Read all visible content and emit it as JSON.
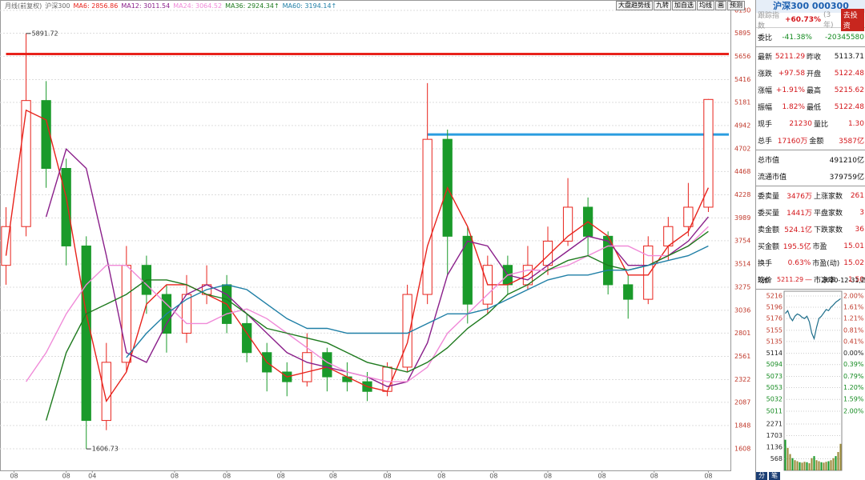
{
  "chart_data": {
    "type": "candlestick",
    "period_label": "月线(前复权)",
    "symbol_label": "沪深300",
    "ylim": [
      1385,
      6237
    ],
    "yticks": [
      6130,
      5895,
      5656,
      5416,
      5181,
      4942,
      4702,
      4468,
      4228,
      3989,
      3754,
      3514,
      3275,
      3036,
      2801,
      2561,
      2322,
      2087,
      1848,
      1608
    ],
    "xlim": [
      -0.3,
      36.1
    ],
    "xticks": [
      {
        "value": 0.4,
        "label": "08"
      },
      {
        "value": 3,
        "label": "08"
      },
      {
        "value": 4.3,
        "label": "04"
      },
      {
        "value": 8.4,
        "label": "08"
      },
      {
        "value": 11,
        "label": "08"
      },
      {
        "value": 13.7,
        "label": "08"
      },
      {
        "value": 16.3,
        "label": "08"
      },
      {
        "value": 19,
        "label": "08"
      },
      {
        "value": 21.7,
        "label": "08"
      },
      {
        "value": 24.3,
        "label": "08"
      },
      {
        "value": 27,
        "label": "08"
      },
      {
        "value": 29.7,
        "label": "08"
      },
      {
        "value": 32.3,
        "label": "08"
      },
      {
        "value": 35,
        "label": "08"
      }
    ],
    "up_color": "#e8231c",
    "down_color": "#1a9a2a",
    "candles": [
      {
        "o": 3500,
        "h": 4100,
        "l": 3300,
        "c": 3900
      },
      {
        "o": 3900,
        "h": 5891.72,
        "l": 3800,
        "c": 5200
      },
      {
        "o": 5200,
        "h": 5400,
        "l": 4300,
        "c": 4500
      },
      {
        "o": 4500,
        "h": 4600,
        "l": 3500,
        "c": 3700
      },
      {
        "o": 3700,
        "h": 3800,
        "l": 1606.73,
        "c": 1900
      },
      {
        "o": 1900,
        "h": 2700,
        "l": 1800,
        "c": 2500
      },
      {
        "o": 2500,
        "h": 3700,
        "l": 2400,
        "c": 3500
      },
      {
        "o": 3500,
        "h": 3600,
        "l": 3000,
        "c": 3200
      },
      {
        "o": 3200,
        "h": 3300,
        "l": 2600,
        "c": 2800
      },
      {
        "o": 2800,
        "h": 3400,
        "l": 2700,
        "c": 3200
      },
      {
        "o": 3200,
        "h": 3500,
        "l": 3100,
        "c": 3300
      },
      {
        "o": 3300,
        "h": 3400,
        "l": 2800,
        "c": 2900
      },
      {
        "o": 2900,
        "h": 3000,
        "l": 2500,
        "c": 2600
      },
      {
        "o": 2600,
        "h": 2700,
        "l": 2200,
        "c": 2400
      },
      {
        "o": 2400,
        "h": 2500,
        "l": 2150,
        "c": 2300
      },
      {
        "o": 2300,
        "h": 2800,
        "l": 2250,
        "c": 2600
      },
      {
        "o": 2600,
        "h": 2650,
        "l": 2200,
        "c": 2350
      },
      {
        "o": 2350,
        "h": 2500,
        "l": 2200,
        "c": 2300
      },
      {
        "o": 2300,
        "h": 2400,
        "l": 2100,
        "c": 2200
      },
      {
        "o": 2200,
        "h": 2500,
        "l": 2150,
        "c": 2450
      },
      {
        "o": 2450,
        "h": 3300,
        "l": 2400,
        "c": 3200
      },
      {
        "o": 3200,
        "h": 5380,
        "l": 3100,
        "c": 4800
      },
      {
        "o": 4800,
        "h": 4900,
        "l": 3400,
        "c": 3800
      },
      {
        "o": 3800,
        "h": 3900,
        "l": 2900,
        "c": 3100
      },
      {
        "o": 3100,
        "h": 3600,
        "l": 3000,
        "c": 3500
      },
      {
        "o": 3500,
        "h": 3600,
        "l": 3200,
        "c": 3300
      },
      {
        "o": 3300,
        "h": 3700,
        "l": 3250,
        "c": 3500
      },
      {
        "o": 3500,
        "h": 3900,
        "l": 3400,
        "c": 3750
      },
      {
        "o": 3750,
        "h": 4400,
        "l": 3700,
        "c": 4100
      },
      {
        "o": 4100,
        "h": 4200,
        "l": 3600,
        "c": 3800
      },
      {
        "o": 3800,
        "h": 3850,
        "l": 3200,
        "c": 3300
      },
      {
        "o": 3300,
        "h": 3400,
        "l": 2950,
        "c": 3150
      },
      {
        "o": 3150,
        "h": 3800,
        "l": 3100,
        "c": 3700
      },
      {
        "o": 3700,
        "h": 4000,
        "l": 3550,
        "c": 3900
      },
      {
        "o": 3900,
        "h": 4350,
        "l": 3800,
        "c": 4100
      },
      {
        "o": 4100,
        "h": 5215.62,
        "l": 4050,
        "c": 5211.29
      }
    ],
    "series": [
      {
        "name": "MA6",
        "legend_label": "MA6: 2856.86",
        "color": "#e8231c",
        "values": [
          3600,
          5100,
          5000,
          4200,
          3000,
          2100,
          2400,
          3100,
          3300,
          3300,
          3200,
          3100,
          2800,
          2500,
          2350,
          2400,
          2450,
          2350,
          2250,
          2200,
          2700,
          3700,
          4300,
          3900,
          3300,
          3300,
          3400,
          3600,
          3800,
          3950,
          3800,
          3400,
          3400,
          3700,
          3850,
          4300
        ]
      },
      {
        "name": "MA12",
        "legend_label": "MA12: 3011.54",
        "color": "#8a1f8a",
        "values": [
          null,
          null,
          4000,
          4700,
          4500,
          3600,
          2600,
          2500,
          2900,
          3200,
          3300,
          3200,
          3000,
          2800,
          2600,
          2500,
          2450,
          2400,
          2350,
          2250,
          2300,
          2700,
          3400,
          3750,
          3700,
          3400,
          3350,
          3500,
          3650,
          3800,
          3750,
          3500,
          3500,
          3600,
          3750,
          4000
        ]
      },
      {
        "name": "MA24",
        "legend_label": "MA24: 3064.52",
        "color": "#f08ad8",
        "values": [
          null,
          2300,
          2600,
          3000,
          3300,
          3500,
          3500,
          3300,
          3100,
          2900,
          2900,
          3000,
          3050,
          2950,
          2800,
          2650,
          2500,
          2400,
          2350,
          2300,
          2300,
          2450,
          2800,
          3000,
          3200,
          3400,
          3450,
          3450,
          3500,
          3600,
          3700,
          3700,
          3600,
          3600,
          3700,
          3900
        ]
      },
      {
        "name": "MA36",
        "legend_label": "MA36: 2924.34↑",
        "color": "#1e7a1e",
        "values": [
          null,
          null,
          1900,
          2600,
          3000,
          3100,
          3200,
          3350,
          3350,
          3300,
          3200,
          3150,
          3000,
          2850,
          2800,
          2750,
          2700,
          2600,
          2500,
          2450,
          2400,
          2500,
          2650,
          2850,
          3000,
          3200,
          3300,
          3450,
          3550,
          3600,
          3500,
          3450,
          3500,
          3600,
          3700,
          3850
        ]
      },
      {
        "name": "MA60",
        "legend_label": "MA60: 3194.14↑",
        "color": "#1f7fa6",
        "values": [
          null,
          null,
          null,
          null,
          null,
          null,
          2550,
          2800,
          3000,
          3150,
          3250,
          3300,
          3250,
          3100,
          2950,
          2850,
          2850,
          2800,
          2800,
          2800,
          2800,
          2900,
          3000,
          3000,
          3050,
          3150,
          3250,
          3350,
          3400,
          3400,
          3450,
          3450,
          3500,
          3550,
          3600,
          3700
        ]
      }
    ],
    "levels": [
      {
        "value": 5680,
        "color": "#e8231c",
        "start_index": 0
      },
      {
        "value": 4850,
        "color": "#2a9de0",
        "start_index": 21
      }
    ]
  },
  "toolbar": [
    "大盘趋势线",
    "九转",
    "加自选",
    "均线",
    "画",
    "预测"
  ],
  "quote_panel": {
    "title": "沪深300 000300",
    "tracking": [
      "跟踪指数",
      "+60.73%",
      "(3年)",
      "去投资"
    ],
    "groups": [
      [
        [
          "委比",
          "-41.38%",
          "-20345580"
        ]
      ],
      [
        [
          "最新",
          "5211.29",
          "昨收",
          "5113.71"
        ],
        [
          "涨跌",
          "+97.58",
          "开盘",
          "5122.48"
        ],
        [
          "涨幅",
          "+1.91%",
          "最高",
          "5215.62"
        ],
        [
          "振幅",
          "1.82%",
          "最低",
          "5122.48"
        ],
        [
          "现手",
          "21230",
          "量比",
          "1.30"
        ],
        [
          "总手",
          "17160万",
          "金额",
          "3587亿"
        ]
      ],
      [
        [
          "总市值",
          "491210亿"
        ],
        [
          "流通市值",
          "379759亿"
        ]
      ],
      [
        [
          "委卖量",
          "3476万",
          "上涨家数",
          "261"
        ],
        [
          "委买量",
          "1441万",
          "平盘家数",
          "3"
        ],
        [
          "卖金额",
          "524.1亿",
          "下跌家数",
          "36"
        ],
        [
          "买金额",
          "195.5亿",
          "市盈",
          "15.01"
        ],
        [
          "换手",
          "0.63%",
          "市盈(动)",
          "15.02"
        ],
        [
          "均价",
          "—",
          "市净率",
          "1.50"
        ]
      ]
    ],
    "intraday": {
      "label": "现价",
      "price": "5211.29",
      "date": "2020-12-31,四",
      "ylim": [
        5011,
        5216
      ],
      "yticks": [
        5216,
        5196,
        5176,
        5155,
        5135,
        5114,
        5094,
        5073,
        5053,
        5032,
        5011
      ],
      "pct_ticks": [
        "2.00%",
        "1.61%",
        "1.21%",
        "0.81%",
        "0.41%",
        "0.00%",
        "0.39%",
        "0.79%",
        "1.20%",
        "1.59%",
        "2.00%"
      ],
      "prices": [
        5185,
        5190,
        5178,
        5172,
        5180,
        5184,
        5182,
        5178,
        5176,
        5180,
        5170,
        5150,
        5140,
        5160,
        5176,
        5180,
        5186,
        5192,
        5190,
        5196,
        5200,
        5205,
        5208,
        5211.29
      ],
      "volume_ylim": [
        0,
        2271
      ],
      "volume_ticks": [
        2271,
        1703,
        1136,
        568
      ],
      "volumes": [
        1500,
        1100,
        800,
        600,
        500,
        450,
        400,
        380,
        420,
        400,
        350,
        600,
        700,
        500,
        450,
        400,
        380,
        420,
        450,
        500,
        600,
        700,
        900,
        1300
      ]
    },
    "tabs": [
      "分",
      "笔"
    ]
  }
}
